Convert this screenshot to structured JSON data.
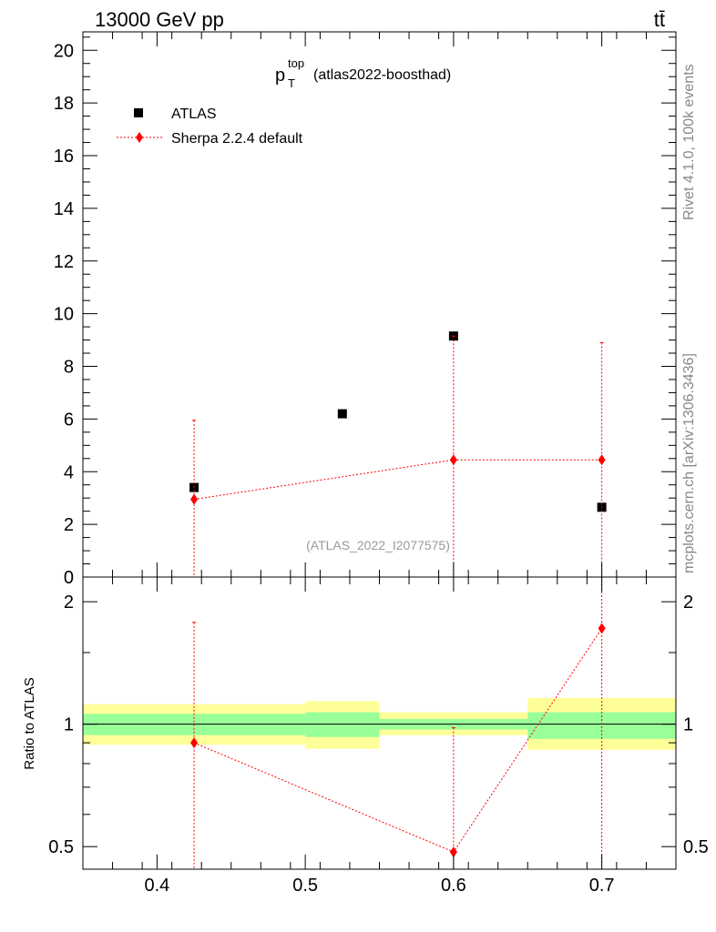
{
  "header": {
    "left": "13000 GeV pp",
    "right": "tt̄"
  },
  "side_text": {
    "rivet": "Rivet 4.1.0,  100k events",
    "mcplots": "mcplots.cern.ch [arXiv:1306.3436]"
  },
  "watermark": "(ATLAS_2022_I2077575)",
  "colors": {
    "data": "#000000",
    "mc": "#ff0000",
    "band_inner": "#99ff99",
    "band_outer": "#ffff99",
    "side_text": "#888888"
  },
  "chart_data": [
    {
      "type": "scatter",
      "title_main": "p",
      "title_sup": "top",
      "title_sub": "T",
      "title_suffix": "(atlas2022-boosthad)",
      "xlim": [
        0.35,
        0.75
      ],
      "ylim": [
        0,
        20.7
      ],
      "yticks": [
        0,
        2,
        4,
        6,
        8,
        10,
        12,
        14,
        16,
        18,
        20
      ],
      "legend": [
        {
          "name": "ATLAS",
          "marker": "square",
          "color": "#000000"
        },
        {
          "name": "Sherpa 2.2.4 default",
          "marker": "diamond",
          "color": "#ff0000",
          "line": "dotted"
        }
      ],
      "series": [
        {
          "name": "ATLAS",
          "points": [
            {
              "x": 0.425,
              "y": 3.4
            },
            {
              "x": 0.525,
              "y": 6.2
            },
            {
              "x": 0.6,
              "y": 9.15
            },
            {
              "x": 0.7,
              "y": 2.65
            }
          ]
        },
        {
          "name": "Sherpa 2.2.4 default",
          "points": [
            {
              "x": 0.425,
              "y": 2.95,
              "err_up": 5.95,
              "err_down": 0
            },
            {
              "x": 0.6,
              "y": 4.45,
              "err_up": 9.15,
              "err_down": 0
            },
            {
              "x": 0.7,
              "y": 4.45,
              "err_up": 8.9,
              "err_down": 0
            }
          ]
        }
      ]
    },
    {
      "type": "line",
      "ylabel": "Ratio to ATLAS",
      "yscale": "log",
      "xlim": [
        0.35,
        0.75
      ],
      "ylim": [
        0.44,
        2.3
      ],
      "yticks": [
        0.5,
        1,
        2
      ],
      "xticks": [
        0.4,
        0.5,
        0.6,
        0.7
      ],
      "bands": [
        {
          "x0": 0.35,
          "x1": 0.5,
          "inner": [
            0.94,
            1.06
          ],
          "outer": [
            0.89,
            1.12
          ]
        },
        {
          "x0": 0.5,
          "x1": 0.55,
          "inner": [
            0.93,
            1.07
          ],
          "outer": [
            0.87,
            1.14
          ]
        },
        {
          "x0": 0.55,
          "x1": 0.65,
          "inner": [
            0.97,
            1.03
          ],
          "outer": [
            0.94,
            1.07
          ]
        },
        {
          "x0": 0.65,
          "x1": 0.75,
          "inner": [
            0.92,
            1.07
          ],
          "outer": [
            0.865,
            1.16
          ]
        }
      ],
      "series": [
        {
          "name": "Sherpa 2.2.4 default",
          "points": [
            {
              "x": 0.425,
              "y": 0.9,
              "err_up": 1.78,
              "err_down": 0.44
            },
            {
              "x": 0.6,
              "y": 0.485,
              "err_up": 0.98,
              "err_down": 0.44
            },
            {
              "x": 0.7,
              "y": 1.72,
              "err_up": 2.3,
              "err_down": 0.44
            }
          ]
        }
      ]
    }
  ]
}
